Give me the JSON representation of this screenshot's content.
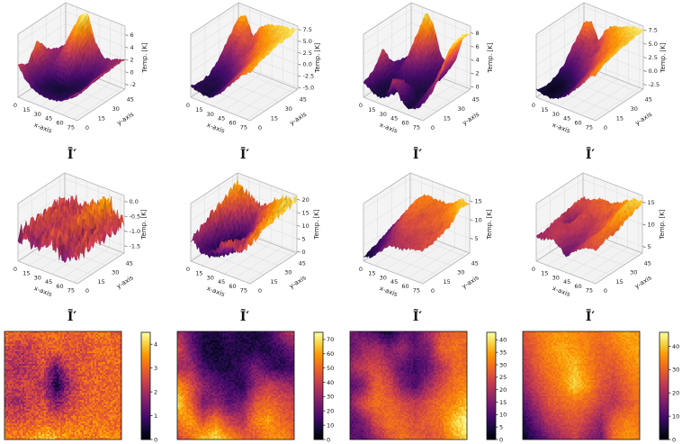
{
  "figure": {
    "background": "#ffffff",
    "colormap": "inferno",
    "row_captions": [
      "Ī′",
      "Ĩ′"
    ]
  },
  "chart_data": [
    {
      "name": "surface-row1-col1",
      "type": "surface_3d",
      "caption": "Ī′",
      "xlabel": "x-axis",
      "ylabel": "y-axis",
      "zlabel": "Temp. [K]",
      "xticks": [
        0,
        15,
        30,
        45,
        60,
        75
      ],
      "yticks": [
        0,
        15,
        30,
        45
      ],
      "xmax": 80,
      "ymax": 50,
      "ztick_vals": [
        -2,
        0,
        2,
        4,
        6
      ],
      "ztick_labels": [
        "-2",
        "0",
        "2",
        "4",
        "6"
      ],
      "zlo": -2.8,
      "zhi": 7.4,
      "noise": 0.18,
      "grid": [
        [
          2.5,
          0.5,
          -0.5,
          -1,
          -1,
          -1,
          -0.5,
          0.5,
          1.5
        ],
        [
          1.5,
          -0.5,
          -1.5,
          -1.5,
          -1.5,
          -1.5,
          -1,
          0,
          1.5
        ],
        [
          4.5,
          0,
          -1.5,
          -2,
          -1.8,
          -1.5,
          -1,
          0.5,
          2
        ],
        [
          2,
          0.5,
          1.5,
          2,
          -1,
          -1.5,
          -0.5,
          0.5,
          2
        ],
        [
          1,
          1.5,
          4.5,
          6,
          1.5,
          -0.5,
          0,
          1,
          2
        ],
        [
          0.5,
          2,
          6.5,
          7,
          3,
          1,
          1,
          1.5,
          2
        ]
      ]
    },
    {
      "name": "surface-row1-col2",
      "type": "surface_3d",
      "caption": "Ī′",
      "xlabel": "x-axis",
      "ylabel": "y-axis",
      "zlabel": "Temp. [K]",
      "xticks": [
        0,
        15,
        30,
        45,
        60,
        75
      ],
      "yticks": [
        0,
        15,
        30,
        45
      ],
      "xmax": 80,
      "ymax": 50,
      "ztick_vals": [
        -5,
        -2.5,
        0,
        2.5,
        5,
        7.5
      ],
      "ztick_labels": [
        "-5.0",
        "-2.5",
        "0.0",
        "2.5",
        "5.0",
        "7.5"
      ],
      "zlo": -5.4,
      "zhi": 8.2,
      "noise": 0.25,
      "grid": [
        [
          -3,
          -3.5,
          -4,
          -3.5,
          -2,
          0,
          2,
          4,
          5
        ],
        [
          -3.5,
          -4,
          -4,
          -3,
          -1,
          1,
          3,
          5,
          6
        ],
        [
          -3,
          -3.5,
          -3,
          -2,
          0,
          2,
          4,
          5.5,
          6.5
        ],
        [
          -1,
          -2,
          -1,
          1,
          2,
          4,
          5,
          6,
          7
        ],
        [
          2,
          1,
          3,
          1,
          4,
          5.5,
          6,
          6.5,
          7
        ],
        [
          5,
          6,
          2,
          5,
          6,
          6.5,
          7,
          7,
          7.5
        ]
      ]
    },
    {
      "name": "surface-row1-col3",
      "type": "surface_3d",
      "caption": "Ī′",
      "xlabel": "x-axis",
      "ylabel": "y-axis",
      "zlabel": "Temp. [K]",
      "xticks": [
        0,
        15,
        30,
        45,
        60,
        75
      ],
      "yticks": [
        0,
        15,
        30,
        45
      ],
      "xmax": 80,
      "ymax": 50,
      "ztick_vals": [
        0,
        2,
        4,
        6,
        8
      ],
      "ztick_labels": [
        "0",
        "2",
        "4",
        "6",
        "8"
      ],
      "zlo": -0.4,
      "zhi": 9.0,
      "noise": 0.2,
      "grid": [
        [
          2,
          1,
          0.5,
          1,
          4,
          1.5,
          0.5,
          1,
          2
        ],
        [
          2.5,
          0.5,
          0.5,
          0.5,
          3,
          1,
          0.5,
          2,
          3
        ],
        [
          5,
          1,
          1,
          1,
          1,
          0.5,
          1,
          3,
          5
        ],
        [
          2,
          1.5,
          3,
          2,
          1,
          1,
          1.5,
          5,
          8
        ],
        [
          1.5,
          2,
          6,
          5,
          2,
          1,
          2,
          6,
          8.5
        ],
        [
          1,
          3,
          8.5,
          7,
          3,
          2,
          3,
          7,
          8
        ]
      ]
    },
    {
      "name": "surface-row1-col4",
      "type": "surface_3d",
      "caption": "Ī′",
      "xlabel": "x-axis",
      "ylabel": "y-axis",
      "zlabel": "Temp. [K]",
      "xticks": [
        0,
        15,
        30,
        45,
        60,
        75
      ],
      "yticks": [
        0,
        15,
        30,
        45
      ],
      "xmax": 80,
      "ymax": 50,
      "ztick_vals": [
        -2.5,
        0,
        2.5,
        5,
        7.5
      ],
      "ztick_labels": [
        "-2.5",
        "0.0",
        "2.5",
        "5.0",
        "7.5"
      ],
      "zlo": -3.4,
      "zhi": 8.2,
      "noise": 0.22,
      "grid": [
        [
          -2,
          -2.5,
          -2.5,
          -2,
          -1,
          0.5,
          2,
          4,
          5
        ],
        [
          -2.5,
          -3,
          -2.5,
          -2,
          -0.5,
          1.5,
          3,
          5,
          6
        ],
        [
          -2,
          -2.5,
          -2,
          -1,
          0.5,
          2.5,
          4,
          5.5,
          6.5
        ],
        [
          -0.5,
          -1,
          0,
          1.5,
          2.5,
          4,
          5,
          6,
          7
        ],
        [
          2,
          1,
          2.5,
          1.5,
          4,
          5.5,
          6,
          6.5,
          7
        ],
        [
          4.5,
          5.5,
          2,
          5,
          6,
          6.5,
          7,
          7.5,
          7.5
        ]
      ]
    },
    {
      "name": "surface-row2-col1",
      "type": "surface_3d",
      "caption": "Ĩ′",
      "xlabel": "x-axis",
      "ylabel": "y-axis",
      "zlabel": "Temp. [K]",
      "xticks": [
        0,
        15,
        30,
        45,
        60,
        75
      ],
      "yticks": [
        0,
        15,
        30,
        45
      ],
      "xmax": 80,
      "ymax": 50,
      "ztick_vals": [
        0,
        -0.5,
        -1,
        -1.5
      ],
      "ztick_labels": [
        "0.0",
        "-0.5",
        "-1.0",
        "-1.5"
      ],
      "zlo": -1.75,
      "zhi": 0.2,
      "noise": 0.3,
      "grid": [
        [
          -0.9,
          -0.8,
          -1.0,
          -0.9,
          -0.7,
          -0.8,
          -1.0,
          -0.9,
          -0.8
        ],
        [
          -0.8,
          -0.7,
          -0.9,
          -0.8,
          -0.6,
          -0.7,
          -0.9,
          -0.8,
          -0.7
        ],
        [
          -0.9,
          -0.6,
          -0.8,
          -0.7,
          -0.8,
          -0.6,
          -0.8,
          -0.7,
          -0.8
        ],
        [
          -0.8,
          -0.7,
          -0.6,
          -0.8,
          -0.7,
          -0.5,
          -0.6,
          -0.8,
          -0.7
        ],
        [
          -0.7,
          -0.8,
          -0.7,
          -0.6,
          -0.7,
          -0.4,
          -0.3,
          -0.6,
          -0.8
        ],
        [
          -0.8,
          -0.6,
          -0.7,
          -0.7,
          -0.5,
          -0.3,
          -0.2,
          -0.5,
          -0.7
        ]
      ]
    },
    {
      "name": "surface-row2-col2",
      "type": "surface_3d",
      "caption": "Ĩ′",
      "xlabel": "x-axis",
      "ylabel": "y-axis",
      "zlabel": "Temp. [K]",
      "xticks": [
        0,
        15,
        30,
        45,
        60,
        75
      ],
      "yticks": [
        0,
        15,
        30,
        45
      ],
      "xmax": 80,
      "ymax": 50,
      "ztick_vals": [
        0,
        5,
        10,
        15,
        20
      ],
      "ztick_labels": [
        "0",
        "5",
        "10",
        "15",
        "20"
      ],
      "zlo": -0.6,
      "zhi": 21.5,
      "noise": 1.6,
      "grid": [
        [
          8,
          6,
          4,
          6,
          10,
          12,
          10,
          12,
          14
        ],
        [
          10,
          4,
          2,
          3,
          6,
          10,
          8,
          14,
          16
        ],
        [
          12,
          6,
          1,
          2,
          4,
          8,
          12,
          16,
          18
        ],
        [
          14,
          8,
          3,
          2,
          6,
          10,
          14,
          17,
          18
        ],
        [
          16,
          12,
          8,
          6,
          10,
          14,
          16,
          18,
          19
        ],
        [
          18,
          16,
          14,
          12,
          14,
          16,
          18,
          19,
          20
        ]
      ]
    },
    {
      "name": "surface-row2-col3",
      "type": "surface_3d",
      "caption": "Ĩ′",
      "xlabel": "x-axis",
      "ylabel": "y-axis",
      "zlabel": "Temp. [K]",
      "xticks": [
        0,
        15,
        30,
        45,
        60,
        75
      ],
      "yticks": [
        0,
        15,
        30,
        45
      ],
      "xmax": 80,
      "ymax": 50,
      "ztick_vals": [
        5,
        10,
        15
      ],
      "ztick_labels": [
        "5",
        "10",
        "15"
      ],
      "zlo": 1.0,
      "zhi": 16.5,
      "noise": 0.5,
      "grid": [
        [
          2,
          3,
          5,
          7,
          8,
          8,
          9,
          9,
          10
        ],
        [
          3,
          4,
          6,
          8,
          9,
          9,
          9,
          10,
          10
        ],
        [
          4,
          6,
          9,
          10,
          10,
          10,
          10,
          10,
          11
        ],
        [
          5,
          8,
          11,
          11,
          10,
          11,
          11,
          11,
          12
        ],
        [
          6,
          9,
          12,
          12,
          11,
          11,
          12,
          13,
          15
        ],
        [
          7,
          10,
          12,
          12,
          12,
          12,
          13,
          15,
          14
        ]
      ]
    },
    {
      "name": "surface-row2-col4",
      "type": "surface_3d",
      "caption": "Ĩ′",
      "xlabel": "x-axis",
      "ylabel": "y-axis",
      "zlabel": "Temp. [K]",
      "xticks": [
        0,
        15,
        30,
        45,
        60,
        75
      ],
      "yticks": [
        0,
        15,
        30,
        45
      ],
      "xmax": 80,
      "ymax": 50,
      "ztick_vals": [
        5,
        10,
        15
      ],
      "ztick_labels": [
        "5",
        "10",
        "15"
      ],
      "zlo": 3.5,
      "zhi": 16.5,
      "noise": 0.35,
      "grid": [
        [
          9,
          9,
          10,
          9,
          7,
          9,
          10,
          11,
          11
        ],
        [
          9,
          10,
          10,
          9,
          8,
          9,
          11,
          12,
          12
        ],
        [
          10,
          10,
          10,
          10,
          9,
          10,
          11,
          13,
          12
        ],
        [
          10,
          6,
          11,
          10,
          10,
          11,
          12,
          14,
          13
        ],
        [
          11,
          10,
          11,
          11,
          12,
          11,
          13,
          15,
          14
        ],
        [
          11,
          11,
          12,
          12,
          12,
          13,
          14,
          15,
          15
        ]
      ]
    },
    {
      "name": "heatmap-col1",
      "type": "heatmap",
      "vmin": 0,
      "vmax": 4.5,
      "noise": 0.45,
      "ctick_vals": [
        0,
        1,
        2,
        3,
        4
      ],
      "ctick_labels": [
        "0",
        "1",
        "2",
        "3",
        "4"
      ],
      "grid": [
        [
          3.2,
          3.0,
          2.8,
          3.0,
          3.1,
          2.9,
          3.0,
          3.2,
          3.0,
          2.8
        ],
        [
          2.6,
          2.2,
          2.4,
          2.8,
          3.0,
          2.8,
          2.6,
          3.0,
          3.1,
          2.9
        ],
        [
          2.4,
          2.0,
          2.2,
          2.6,
          1.2,
          2.6,
          2.8,
          2.9,
          3.0,
          3.0
        ],
        [
          2.5,
          2.3,
          2.5,
          2.0,
          0.4,
          1.8,
          2.8,
          3.0,
          2.9,
          3.1
        ],
        [
          2.2,
          2.0,
          2.4,
          2.6,
          1.5,
          2.4,
          2.9,
          3.0,
          3.0,
          3.0
        ],
        [
          2.8,
          2.6,
          2.8,
          3.0,
          2.9,
          3.0,
          3.1,
          3.2,
          3.1,
          3.0
        ],
        [
          3.4,
          3.3,
          3.6,
          4.0,
          3.8,
          3.5,
          3.4,
          3.3,
          3.5,
          3.2
        ]
      ]
    },
    {
      "name": "heatmap-col2",
      "type": "heatmap",
      "vmin": 0,
      "vmax": 75,
      "noise": 4,
      "ctick_vals": [
        0,
        10,
        20,
        30,
        40,
        50,
        60,
        70
      ],
      "ctick_labels": [
        "0",
        "10",
        "20",
        "30",
        "40",
        "50",
        "60",
        "70"
      ],
      "grid": [
        [
          35,
          20,
          10,
          8,
          15,
          10,
          8,
          15,
          30,
          40
        ],
        [
          45,
          25,
          8,
          5,
          10,
          8,
          10,
          10,
          15,
          25
        ],
        [
          30,
          35,
          15,
          10,
          8,
          15,
          25,
          15,
          10,
          15
        ],
        [
          60,
          45,
          30,
          20,
          15,
          10,
          30,
          40,
          35,
          30
        ],
        [
          70,
          50,
          25,
          30,
          20,
          25,
          45,
          50,
          45,
          40
        ],
        [
          55,
          60,
          45,
          55,
          40,
          35,
          55,
          60,
          50,
          45
        ],
        [
          40,
          50,
          65,
          70,
          60,
          50,
          45,
          55,
          60,
          50
        ]
      ]
    },
    {
      "name": "heatmap-col3",
      "type": "heatmap",
      "vmin": 0,
      "vmax": 43,
      "noise": 2,
      "ctick_vals": [
        0,
        5,
        10,
        15,
        20,
        25,
        30,
        35,
        40
      ],
      "ctick_labels": [
        "0",
        "5",
        "10",
        "15",
        "20",
        "25",
        "30",
        "35",
        "40"
      ],
      "grid": [
        [
          15,
          12,
          8,
          3,
          12,
          10,
          18,
          25,
          28,
          30
        ],
        [
          12,
          18,
          20,
          15,
          18,
          12,
          15,
          28,
          30,
          28
        ],
        [
          18,
          22,
          25,
          20,
          12,
          8,
          12,
          20,
          28,
          30
        ],
        [
          10,
          15,
          28,
          25,
          15,
          10,
          18,
          25,
          30,
          32
        ],
        [
          15,
          25,
          30,
          28,
          25,
          22,
          25,
          30,
          32,
          38
        ],
        [
          10,
          15,
          25,
          30,
          28,
          25,
          28,
          30,
          38,
          42
        ],
        [
          12,
          10,
          18,
          25,
          30,
          28,
          25,
          28,
          35,
          40
        ]
      ]
    },
    {
      "name": "heatmap-col4",
      "type": "heatmap",
      "vmin": 0,
      "vmax": 46,
      "noise": 1.8,
      "ctick_vals": [
        0,
        10,
        20,
        30,
        40
      ],
      "ctick_labels": [
        "0",
        "10",
        "20",
        "30",
        "40"
      ],
      "grid": [
        [
          28,
          32,
          35,
          36,
          35,
          33,
          32,
          35,
          38,
          36
        ],
        [
          25,
          30,
          35,
          38,
          36,
          34,
          30,
          32,
          36,
          38
        ],
        [
          22,
          28,
          33,
          36,
          40,
          34,
          30,
          28,
          33,
          36
        ],
        [
          18,
          25,
          30,
          34,
          42,
          36,
          28,
          25,
          30,
          34
        ],
        [
          12,
          20,
          28,
          30,
          32,
          30,
          25,
          22,
          28,
          32
        ],
        [
          6,
          14,
          22,
          26,
          28,
          24,
          18,
          30,
          34,
          33
        ],
        [
          2,
          8,
          15,
          20,
          24,
          18,
          14,
          32,
          36,
          34
        ]
      ]
    }
  ]
}
